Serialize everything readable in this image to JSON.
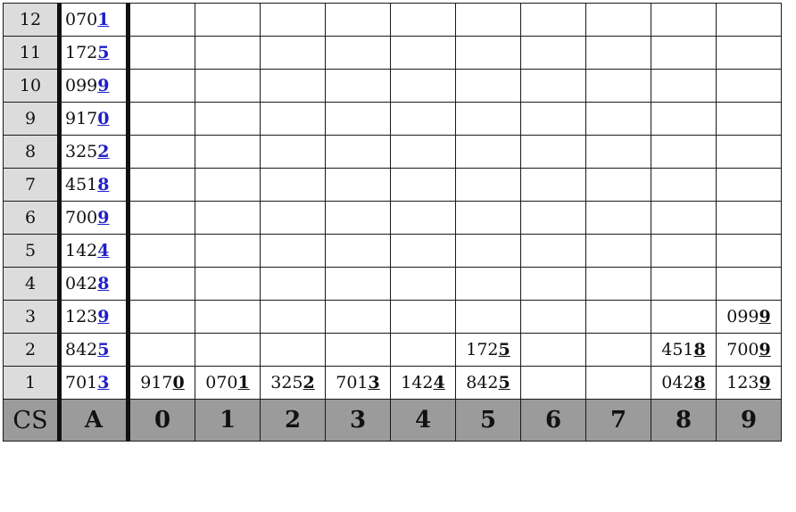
{
  "row_labels": [
    "12",
    "11",
    "10",
    "9",
    "8",
    "7",
    "6",
    "5",
    "4",
    "3",
    "2",
    "1"
  ],
  "column_a": [
    {
      "head": "070",
      "last": "1"
    },
    {
      "head": "172",
      "last": "5"
    },
    {
      "head": "099",
      "last": "9"
    },
    {
      "head": "917",
      "last": "0"
    },
    {
      "head": "325",
      "last": "2"
    },
    {
      "head": "451",
      "last": "8"
    },
    {
      "head": "700",
      "last": "9"
    },
    {
      "head": "142",
      "last": "4"
    },
    {
      "head": "042",
      "last": "8"
    },
    {
      "head": "123",
      "last": "9"
    },
    {
      "head": "842",
      "last": "5"
    },
    {
      "head": "701",
      "last": "3"
    }
  ],
  "footer": {
    "corner": "CS",
    "a_label": "A",
    "bucket_labels": [
      "0",
      "1",
      "2",
      "3",
      "4",
      "5",
      "6",
      "7",
      "8",
      "9"
    ]
  },
  "buckets": {
    "row3": {
      "9": {
        "head": "099",
        "last": "9"
      }
    },
    "row2": {
      "5": {
        "head": "172",
        "last": "5"
      },
      "8": {
        "head": "451",
        "last": "8"
      },
      "9": {
        "head": "700",
        "last": "9"
      }
    },
    "row1": {
      "0": {
        "head": "917",
        "last": "0"
      },
      "1": {
        "head": "070",
        "last": "1"
      },
      "2": {
        "head": "325",
        "last": "2"
      },
      "3": {
        "head": "701",
        "last": "3"
      },
      "4": {
        "head": "142",
        "last": "4"
      },
      "5": {
        "head": "842",
        "last": "5"
      },
      "8": {
        "head": "042",
        "last": "8"
      },
      "9": {
        "head": "123",
        "last": "9"
      }
    }
  },
  "colors": {
    "row_label_bg": "#dcdcdc",
    "footer_bg": "#9b9b9b",
    "highlight_digit": "#1f1fc8"
  }
}
